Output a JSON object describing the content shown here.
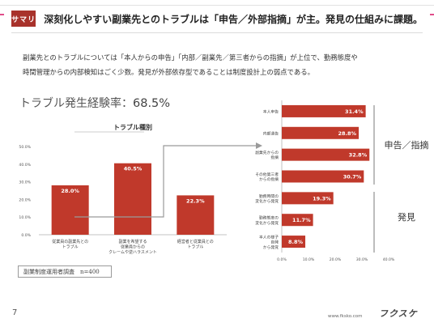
{
  "header": {
    "badge": "サマリ",
    "title": "深刻化しやすい副業先とのトラブルは「申告／外部指摘」が主。発見の仕組みに課題。"
  },
  "body": {
    "line1": "副業先とのトラブルについては「本人からの申告」「内部／副業先／第三者からの指摘」が上位で、勤務態度や",
    "line2": "時間管理からの内部検知はごく少数。発見が外部依存型であることは制度設計上の弱点である。"
  },
  "headline": {
    "label": "トラブル発生経験率：",
    "value": "68.5%"
  },
  "note": "副業制度運用者調査　n=400",
  "page_number": "7",
  "footer": {
    "url": "www.fksko.com",
    "logo": "フクスケ"
  },
  "colors": {
    "bar": "#c0392b",
    "badge": "#a8322b",
    "bracket": "#bdbdbd",
    "arrow": "#9a9a9a",
    "accent_pink": "#e14c8a"
  },
  "chart_data": [
    {
      "type": "bar",
      "title": "トラブル種別",
      "categories": [
        [
          "従業員の副業先との",
          "トラブル"
        ],
        [
          "副業を希望する",
          "従業員からの",
          "クレームや逆ハラスメント"
        ],
        [
          "経営者と従業員との",
          "トラブル"
        ]
      ],
      "values": [
        28.0,
        40.5,
        22.3
      ],
      "data_labels": [
        "28.0%",
        "40.5%",
        "22.3%"
      ],
      "yticks": [
        "0.0%",
        "10.0%",
        "20.0%",
        "30.0%",
        "40.0%",
        "50.0%"
      ],
      "ylim": [
        0,
        50
      ],
      "grid": false
    },
    {
      "type": "bar",
      "orientation": "horizontal",
      "categories": [
        [
          "本人申告"
        ],
        [
          "内部通告"
        ],
        [
          "副業先からの",
          "指摘"
        ],
        [
          "その他第三者",
          "からの指摘"
        ],
        [
          "勤務時間の",
          "変化から発覚"
        ],
        [
          "勤務態度の",
          "変化から発覚"
        ],
        [
          "本人の様子",
          "自発",
          "から発覚"
        ]
      ],
      "values": [
        31.4,
        28.8,
        32.8,
        30.7,
        19.3,
        11.7,
        8.8
      ],
      "data_labels": [
        "31.4%",
        "28.8%",
        "32.8%",
        "30.7%",
        "19.3%",
        "11.7%",
        "8.8%"
      ],
      "xticks": [
        "0.0%",
        "10.0%",
        "20.0%",
        "30.0%",
        "40.0%"
      ],
      "xlim": [
        0,
        40
      ],
      "grid": false,
      "group_labels": [
        "申告／指摘",
        "発見"
      ]
    }
  ]
}
